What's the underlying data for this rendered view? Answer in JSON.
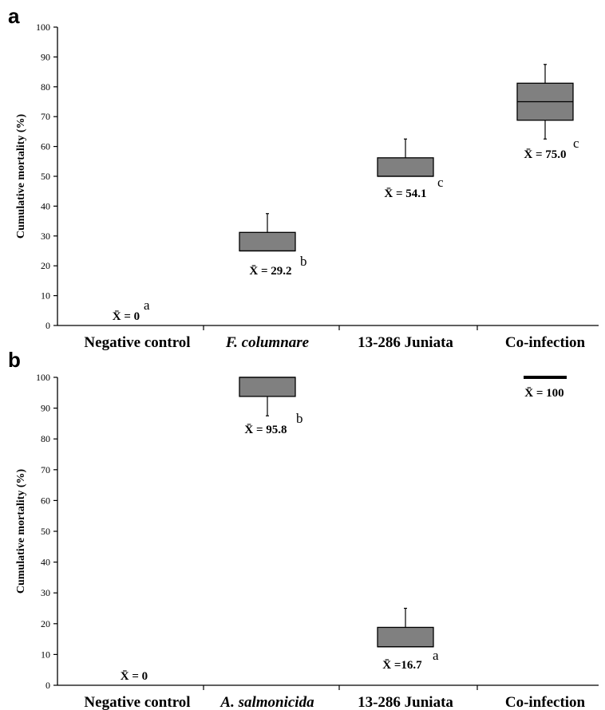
{
  "chart_data": [
    {
      "panel": "a",
      "type": "box",
      "ylabel": "Cumulative mortality (%)",
      "ylim": [
        0,
        100
      ],
      "yticks": [
        0,
        10,
        20,
        30,
        40,
        50,
        60,
        70,
        80,
        90,
        100
      ],
      "categories": [
        "Negative control",
        "F. columnare",
        "13-286 Juniata",
        "Co-infection"
      ],
      "italic_categories": [
        false,
        true,
        false,
        false
      ],
      "boxes": [
        null,
        {
          "q1": 25.0,
          "median": 25.0,
          "q3": 31.2,
          "whisker_high": 37.5
        },
        {
          "q1": 50.0,
          "median": 50.0,
          "q3": 56.2,
          "whisker_high": 62.5
        },
        {
          "whisker_low": 62.5,
          "q1": 68.8,
          "median": 75.0,
          "q3": 81.2,
          "whisker_high": 87.5
        }
      ],
      "means": [
        0,
        29.2,
        54.1,
        75.0
      ],
      "mean_labels": [
        "X̄ = 0",
        "X̄ = 29.2",
        "X̄ = 54.1",
        "X̄ = 75.0"
      ],
      "significance": [
        "a",
        "b",
        "c",
        "c"
      ]
    },
    {
      "panel": "b",
      "type": "box",
      "ylabel": "Cumulative mortality (%)",
      "ylim": [
        0,
        100
      ],
      "yticks": [
        0,
        10,
        20,
        30,
        40,
        50,
        60,
        70,
        80,
        90,
        100
      ],
      "categories": [
        "Negative control",
        "A. salmonicida",
        "13-286 Juniata",
        "Co-infection"
      ],
      "italic_categories": [
        false,
        true,
        false,
        false
      ],
      "boxes": [
        null,
        {
          "whisker_low": 87.5,
          "q1": 93.8,
          "median": 100.0,
          "q3": 100.0
        },
        {
          "q1": 12.5,
          "median": 12.5,
          "q3": 18.8,
          "whisker_high": 25.0
        },
        {
          "q1": 100.0,
          "median": 100.0,
          "q3": 100.0
        }
      ],
      "means": [
        0,
        95.8,
        16.7,
        100
      ],
      "mean_labels": [
        "X̄ = 0",
        "X̄ = 95.8",
        "X̄ =16.7",
        "X̄ = 100"
      ],
      "significance": [
        "",
        "b",
        "a",
        ""
      ]
    }
  ]
}
